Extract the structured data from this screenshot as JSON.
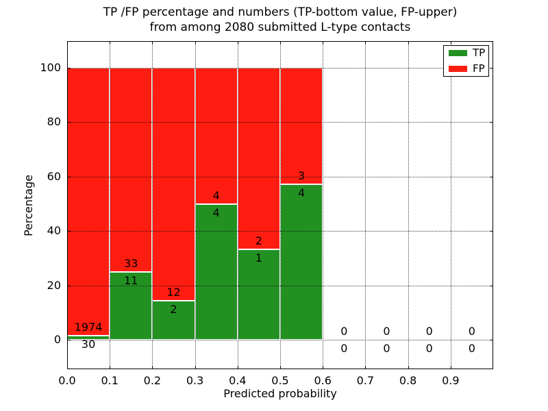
{
  "chart_data": {
    "type": "bar",
    "variant": "stacked-percentage-histogram",
    "title_line1": "TP /FP percentage and numbers (TP-bottom value, FP-upper)",
    "title_line2": "from among 2080 submitted L-type contacts",
    "xlabel": "Predicted probability",
    "ylabel": "Percentage",
    "xlim": [
      0.0,
      1.0
    ],
    "ylim": [
      -10.8,
      109.8
    ],
    "xticks": [
      "0.0",
      "0.1",
      "0.2",
      "0.3",
      "0.4",
      "0.5",
      "0.6",
      "0.7",
      "0.8",
      "0.9"
    ],
    "yticks": [
      "0",
      "20",
      "40",
      "60",
      "80",
      "100"
    ],
    "grid": "dotted",
    "legend_position": "upper-right",
    "series": [
      {
        "name": "TP",
        "color": "#229122"
      },
      {
        "name": "FP",
        "color": "#FF1D12"
      }
    ],
    "bin_width": 0.1,
    "bins": [
      {
        "range": [
          0.0,
          0.1
        ],
        "tp": 30,
        "fp": 1974
      },
      {
        "range": [
          0.1,
          0.2
        ],
        "tp": 11,
        "fp": 33
      },
      {
        "range": [
          0.2,
          0.3
        ],
        "tp": 2,
        "fp": 12
      },
      {
        "range": [
          0.3,
          0.4
        ],
        "tp": 4,
        "fp": 4
      },
      {
        "range": [
          0.4,
          0.5
        ],
        "tp": 1,
        "fp": 2
      },
      {
        "range": [
          0.5,
          0.6
        ],
        "tp": 4,
        "fp": 3
      },
      {
        "range": [
          0.6,
          0.7
        ],
        "tp": 0,
        "fp": 0
      },
      {
        "range": [
          0.7,
          0.8
        ],
        "tp": 0,
        "fp": 0
      },
      {
        "range": [
          0.8,
          0.9
        ],
        "tp": 0,
        "fp": 0
      },
      {
        "range": [
          0.9,
          1.0
        ],
        "tp": 0,
        "fp": 0
      }
    ]
  }
}
